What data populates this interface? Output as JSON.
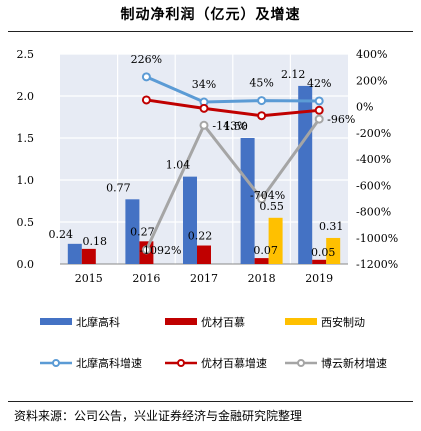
{
  "title": "制动净利润（亿元）及增速",
  "source": "资料来源：公司公告，兴业证券经济与金融研究院整理",
  "chart_data": {
    "type": "bar",
    "categories": [
      "2015",
      "2016",
      "2017",
      "2018",
      "2019"
    ],
    "left_axis": {
      "ylim": [
        0,
        2.5
      ],
      "ticks": [
        "0.0",
        "0.5",
        "1.0",
        "1.5",
        "2.0",
        "2.5"
      ]
    },
    "right_axis": {
      "ylim": [
        -1200,
        400
      ],
      "ticks": [
        "-1200%",
        "-1000%",
        "-800%",
        "-600%",
        "-400%",
        "-200%",
        "0%",
        "200%",
        "400%"
      ]
    },
    "bar_series": [
      {
        "name": "北摩高科",
        "color": "#4472C4",
        "values": [
          0.24,
          0.77,
          1.04,
          1.5,
          2.12
        ],
        "labels": [
          "0.24",
          "0.77",
          "1.04",
          "1.50",
          "2.12"
        ]
      },
      {
        "name": "优材百慕",
        "color": "#C00000",
        "values": [
          0.18,
          0.27,
          0.22,
          0.07,
          0.05
        ],
        "labels": [
          "0.18",
          "0.27",
          "0.22",
          "0.07",
          "0.05"
        ]
      },
      {
        "name": "西安制动",
        "color": "#FFC000",
        "values": [
          null,
          null,
          null,
          0.55,
          0.31
        ],
        "labels": [
          "",
          "",
          "",
          "0.55",
          "0.31"
        ]
      }
    ],
    "line_series": [
      {
        "name": "北摩高科增速",
        "color": "#5B9BD5",
        "values": [
          null,
          226,
          34,
          45,
          42
        ],
        "labels": [
          "",
          "226%",
          "34%",
          "45%",
          "42%"
        ]
      },
      {
        "name": "优材百慕增速",
        "color": "#C00000",
        "values": [
          null,
          50,
          -14,
          -70,
          -29
        ],
        "labels": [
          "",
          "",
          "",
          "",
          ""
        ]
      },
      {
        "name": "博云新材增速",
        "color": "#A5A5A5",
        "values": [
          null,
          -1092,
          -143,
          -704,
          -96
        ],
        "labels": [
          "",
          "-1092%",
          "-143%",
          "-704%",
          "-96%"
        ]
      }
    ]
  }
}
